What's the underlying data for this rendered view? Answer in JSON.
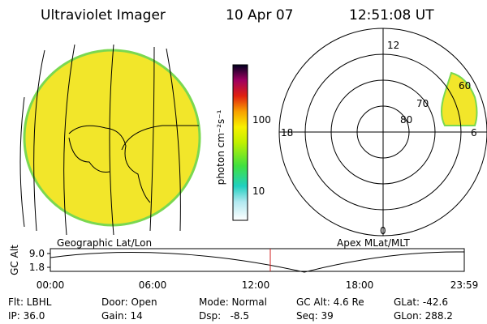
{
  "header": {
    "title": "Ultraviolet Imager",
    "date": "10 Apr 07",
    "time": "12:51:08 UT"
  },
  "colorbar": {
    "label": "photon cm⁻²s⁻¹",
    "ticks": [
      "100",
      "10"
    ]
  },
  "map_label": "Geographic Lat/Lon",
  "polar": {
    "label": "Apex MLat/MLT",
    "mlt_labels": [
      "12",
      "18",
      "6",
      "0"
    ],
    "lat_labels": [
      "60",
      "70",
      "80"
    ]
  },
  "altitude": {
    "axis_label": "GC Alt",
    "ticks": [
      "9.0",
      "1.8"
    ],
    "times": [
      "00:00",
      "06:00",
      "12:00",
      "18:00",
      "23:59"
    ]
  },
  "status": [
    [
      "Flt: LBHL",
      "Door: Open",
      "Mode: Normal",
      "GC Alt: 4.6 Re",
      "GLat: -42.6"
    ],
    [
      "IP: 36.0",
      "Gain: 14",
      "Dsp:   -8.5",
      "Seq: 39",
      "GLon: 288.2"
    ]
  ]
}
